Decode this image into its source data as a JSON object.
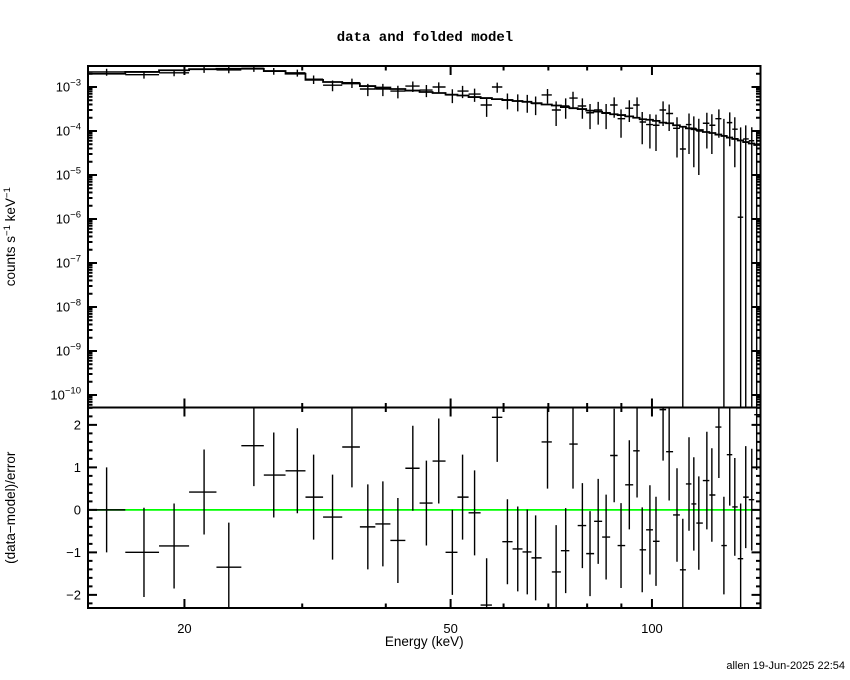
{
  "title": "data and folded model",
  "footer": "allen 19-Jun-2025 22:54",
  "colors": {
    "background": "#ffffff",
    "axis": "#000000",
    "data": "#000000",
    "model": "#000000",
    "zero_line": "#00ff00"
  },
  "axes": {
    "x": {
      "label": "Energy (keV)",
      "scale": "log",
      "min": 14.35,
      "max": 145.3,
      "major_ticks": [
        20,
        50,
        100
      ],
      "minor_ticks": [
        30,
        40,
        60,
        70,
        80,
        90
      ]
    },
    "y_top": {
      "label_parts": [
        {
          "t": "counts s"
        },
        {
          "t": "−1",
          "sup": true
        },
        {
          "t": " keV"
        },
        {
          "t": "−1",
          "sup": true
        }
      ],
      "scale": "log",
      "min": 5.2e-11,
      "max": 0.003,
      "major_exponents": [
        -3,
        -4,
        -5,
        -6,
        -7,
        -8,
        -9,
        -10
      ]
    },
    "y_bottom": {
      "label": "(data−model)/error",
      "scale": "linear",
      "min": -2.31,
      "max": 2.41,
      "major_ticks": [
        -2,
        -1,
        0,
        1,
        2
      ],
      "minor_step": 0.2
    }
  },
  "chart_data": {
    "type": "scatter",
    "title": "data and folded model",
    "xlabel": "Energy (keV)",
    "ylabel_top": "counts s-1 keV-1",
    "ylabel_bottom": "(data-model)/error",
    "x_log": true,
    "y_top_log": true,
    "x_range": [
      14.35,
      145.3
    ],
    "y_top_range": [
      5.2e-11,
      0.003
    ],
    "y_bottom_range": [
      -2.31,
      2.41
    ],
    "legend": "none",
    "series_names": [
      "data",
      "folded model",
      "residuals"
    ],
    "bin_fields": [
      "energy_keV",
      "data_counts",
      "data_err",
      "model_counts",
      "residual_sigma",
      "residual_err"
    ],
    "bins": [
      [
        15.3,
        0.0022,
        0.0004,
        0.002,
        0.0,
        1.0
      ],
      [
        17.4,
        0.0019,
        0.00035,
        0.0022,
        -1.0,
        1.05
      ],
      [
        19.3,
        0.0021,
        0.00035,
        0.0024,
        -0.85,
        1.0
      ],
      [
        21.4,
        0.0025,
        0.0004,
        0.00255,
        0.42,
        1.0
      ],
      [
        23.3,
        0.00245,
        0.0004,
        0.0026,
        -1.35,
        1.05
      ],
      [
        25.4,
        0.00265,
        0.00045,
        0.0026,
        1.51,
        0.95
      ],
      [
        27.2,
        0.0023,
        0.0004,
        0.0023,
        0.82,
        1.0
      ],
      [
        29.5,
        0.0021,
        0.00038,
        0.002,
        0.92,
        1.0
      ],
      [
        31.2,
        0.0015,
        0.00033,
        0.00145,
        0.3,
        1.0
      ],
      [
        33.3,
        0.0011,
        0.0003,
        0.0013,
        -0.17,
        1.0
      ],
      [
        35.6,
        0.00125,
        0.0003,
        0.0012,
        1.48,
        0.95
      ],
      [
        37.6,
        0.0009,
        0.00028,
        0.00105,
        -0.4,
        1.0
      ],
      [
        39.6,
        0.0009,
        0.00028,
        0.00097,
        -0.33,
        1.0
      ],
      [
        41.7,
        0.00081,
        0.00026,
        0.0009,
        -0.72,
        1.0
      ],
      [
        43.9,
        0.00105,
        0.00028,
        0.00083,
        0.98,
        1.0
      ],
      [
        46.0,
        0.00085,
        0.00026,
        0.00077,
        0.16,
        1.0
      ],
      [
        48.0,
        0.001,
        0.00027,
        0.00073,
        1.15,
        1.0
      ],
      [
        50.3,
        0.00066,
        0.00023,
        0.00067,
        -1.0,
        1.0
      ],
      [
        52.1,
        0.00081,
        0.00025,
        0.00064,
        0.3,
        1.0
      ],
      [
        54.3,
        0.00069,
        0.00023,
        0.00059,
        -0.07,
        1.0
      ],
      [
        56.6,
        0.00039,
        0.00018,
        0.00056,
        -2.24,
        1.1
      ],
      [
        58.7,
        0.001,
        0.00026,
        0.00053,
        2.18,
        1.05
      ],
      [
        60.8,
        0.00051,
        0.0002,
        0.000505,
        -0.75,
        1.0
      ],
      [
        63.0,
        0.00048,
        0.0002,
        0.00048,
        -0.92,
        1.0
      ],
      [
        65.1,
        0.00046,
        0.0002,
        0.00046,
        -0.99,
        1.0
      ],
      [
        67.0,
        0.00042,
        0.00019,
        0.00043,
        -1.13,
        1.0
      ],
      [
        69.8,
        0.00066,
        0.00024,
        0.0004,
        1.6,
        1.1
      ],
      [
        71.9,
        0.0003,
        0.00017,
        0.00038,
        -1.46,
        1.1
      ],
      [
        74.3,
        0.00037,
        0.00018,
        0.00035,
        -0.96,
        1.0
      ],
      [
        76.2,
        0.00056,
        0.00022,
        0.00033,
        1.55,
        1.05
      ],
      [
        78.7,
        0.00037,
        0.00018,
        0.000315,
        -0.37,
        1.0
      ],
      [
        80.8,
        0.00026,
        0.00015,
        0.00029,
        -1.03,
        1.0
      ],
      [
        83.1,
        0.0003,
        0.00016,
        0.000275,
        -0.27,
        1.0
      ],
      [
        85.4,
        0.00026,
        0.00015,
        0.000255,
        -0.64,
        1.0
      ],
      [
        87.8,
        0.00039,
        0.00019,
        0.00024,
        1.28,
        1.1
      ],
      [
        89.9,
        0.00019,
        0.00012,
        0.00023,
        -0.84,
        1.0
      ],
      [
        92.5,
        0.00033,
        0.00017,
        0.000215,
        0.59,
        1.05
      ],
      [
        95.0,
        0.00039,
        0.00019,
        0.0002,
        1.39,
        1.1
      ],
      [
        96.7,
        0.00016,
        0.00011,
        0.000185,
        -0.94,
        1.0
      ],
      [
        99.3,
        0.00014,
        0.0001,
        0.00018,
        -0.47,
        1.05
      ],
      [
        101.4,
        0.000135,
        0.0001,
        0.00017,
        -0.74,
        1.05
      ],
      [
        103.9,
        0.0003,
        0.00017,
        0.000155,
        2.36,
        1.2
      ],
      [
        106.1,
        0.00025,
        0.00015,
        0.00015,
        1.37,
        1.15
      ],
      [
        109.0,
        0.000115,
        9e-05,
        0.000135,
        -0.12,
        1.1
      ],
      [
        111.2,
        3.9e-05,
        8.6e-05,
        0.000125,
        -1.41,
        1.2
      ],
      [
        113.6,
        0.00014,
        0.00011,
        0.000115,
        0.61,
        1.1
      ],
      [
        115.5,
        0.000115,
        0.0001,
        0.00011,
        0.14,
        1.1
      ],
      [
        117.5,
        0.0001,
        9e-05,
        0.000105,
        -0.31,
        1.1
      ],
      [
        120.8,
        0.00015,
        0.00011,
        9.5e-05,
        0.69,
        1.15
      ],
      [
        122.9,
        0.000135,
        0.000105,
        9e-05,
        0.35,
        1.1
      ],
      [
        125.9,
        0.00019,
        0.00012,
        8.3e-05,
        1.95,
        1.2
      ],
      [
        128.1,
        7.8e-05,
        0.00011,
        7.7e-05,
        -0.84,
        1.15
      ],
      [
        130.7,
        0.000155,
        0.00011,
        7.1e-05,
        1.3,
        1.2
      ],
      [
        133.0,
        0.00011,
        9.5e-05,
        6.6e-05,
        0.07,
        1.15
      ],
      [
        135.7,
        1.1e-06,
        0.00012,
        6.1e-05,
        -1.15,
        1.3
      ],
      [
        138.1,
        6.6e-05,
        6.8e-05,
        5.6e-05,
        0.3,
        1.2
      ],
      [
        141.0,
        6e-05,
        6.2e-05,
        5.2e-05,
        0.24,
        1.2
      ],
      [
        143.4,
        5e-05,
        5.2e-05,
        4.8e-05,
        2.24,
        1.3
      ]
    ]
  }
}
